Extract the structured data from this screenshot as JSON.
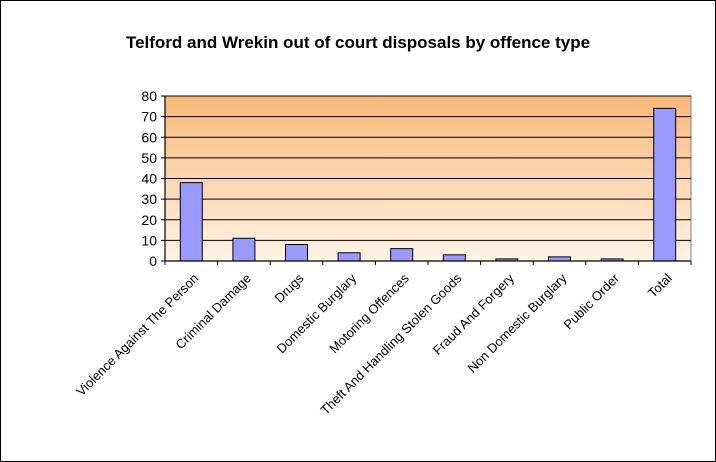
{
  "chart_data": {
    "type": "bar",
    "title": "Telford and Wrekin out of court disposals by offence type",
    "xlabel": "",
    "ylabel": "",
    "categories": [
      "Violence Against The Person",
      "Criminal Damage",
      "Drugs",
      "Domestic Burglary",
      "Motoring Offences",
      "Theft And Handling Stolen Goods",
      "Fraud And Forgery",
      "Non Domestic Burglary",
      "Public Order",
      "Total"
    ],
    "values": [
      38,
      11,
      8,
      4,
      6,
      3,
      1,
      2,
      1,
      74
    ],
    "ylim": [
      0,
      80
    ],
    "yticks": [
      "0",
      "10",
      "20",
      "30",
      "40",
      "50",
      "60",
      "70",
      "80"
    ],
    "grid": true,
    "legend": "none",
    "colors": {
      "bar_fill": "#9999ff",
      "bar_stroke": "#000000",
      "plot_bg_top": "#f8b878",
      "plot_bg_bottom": "#fff3e6",
      "grid": "#000000"
    }
  }
}
